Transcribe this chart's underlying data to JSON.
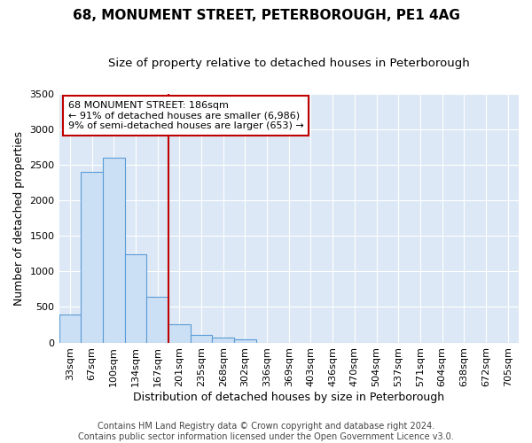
{
  "title": "68, MONUMENT STREET, PETERBOROUGH, PE1 4AG",
  "subtitle": "Size of property relative to detached houses in Peterborough",
  "xlabel": "Distribution of detached houses by size in Peterborough",
  "ylabel": "Number of detached properties",
  "footer_line1": "Contains HM Land Registry data © Crown copyright and database right 2024.",
  "footer_line2": "Contains public sector information licensed under the Open Government Licence v3.0.",
  "categories": [
    "33sqm",
    "67sqm",
    "100sqm",
    "134sqm",
    "167sqm",
    "201sqm",
    "235sqm",
    "268sqm",
    "302sqm",
    "336sqm",
    "369sqm",
    "403sqm",
    "436sqm",
    "470sqm",
    "504sqm",
    "537sqm",
    "571sqm",
    "604sqm",
    "638sqm",
    "672sqm",
    "705sqm"
  ],
  "values": [
    390,
    2400,
    2600,
    1240,
    640,
    260,
    105,
    65,
    50,
    0,
    0,
    0,
    0,
    0,
    0,
    0,
    0,
    0,
    0,
    0,
    0
  ],
  "bar_color": "#cce0f5",
  "bar_edge_color": "#5b9bd5",
  "vline_color": "#c00000",
  "vline_x_index": 5,
  "annotation_line1": "68 MONUMENT STREET: 186sqm",
  "annotation_line2": "← 91% of detached houses are smaller (6,986)",
  "annotation_line3": "9% of semi-detached houses are larger (653) →",
  "annotation_box_color": "#c00000",
  "ylim": [
    0,
    3500
  ],
  "yticks": [
    0,
    500,
    1000,
    1500,
    2000,
    2500,
    3000,
    3500
  ],
  "background_color": "#ffffff",
  "plot_bg_color": "#dce8f5",
  "grid_color": "#ffffff",
  "title_fontsize": 11,
  "subtitle_fontsize": 9.5,
  "tick_fontsize": 8,
  "label_fontsize": 9,
  "footer_fontsize": 7
}
